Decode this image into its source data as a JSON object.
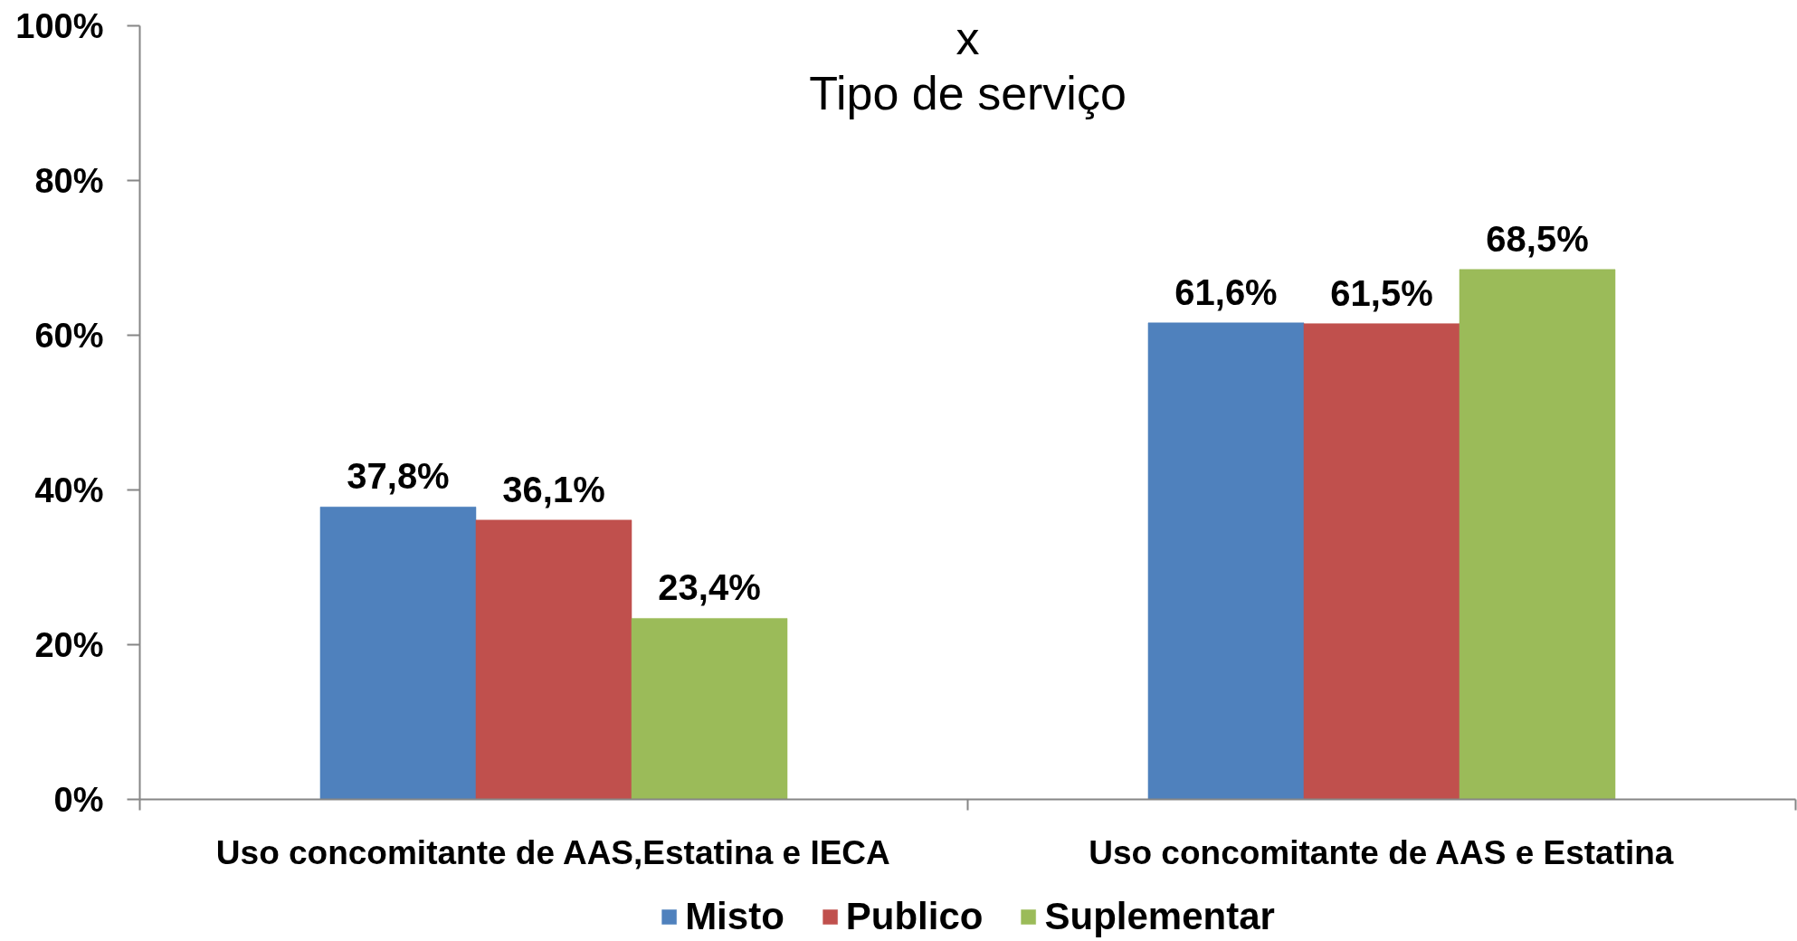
{
  "chart_data": {
    "type": "bar",
    "title": "x\nTipo de serviço",
    "categories": [
      "Uso concomitante de AAS,Estatina e IECA",
      "Uso concomitante de AAS e Estatina"
    ],
    "series": [
      {
        "name": "Misto",
        "color": "#4f81bd",
        "values": [
          37.8,
          61.6
        ],
        "value_labels": [
          "37,8%",
          "61,6%"
        ]
      },
      {
        "name": "Publico",
        "color": "#c0504d",
        "values": [
          36.1,
          61.5
        ],
        "value_labels": [
          "36,1%",
          "61,5%"
        ]
      },
      {
        "name": "Suplementar",
        "color": "#9bbb59",
        "values": [
          23.4,
          68.5
        ],
        "value_labels": [
          "23,4%",
          "68,5%"
        ]
      }
    ],
    "ylim": [
      0,
      100
    ],
    "yticks": [
      {
        "value": 0,
        "label": "0%"
      },
      {
        "value": 20,
        "label": "20%"
      },
      {
        "value": 40,
        "label": "40%"
      },
      {
        "value": 60,
        "label": "60%"
      },
      {
        "value": 80,
        "label": "80%"
      },
      {
        "value": 100,
        "label": "100%"
      }
    ],
    "grid": false,
    "legend": "bottom"
  }
}
